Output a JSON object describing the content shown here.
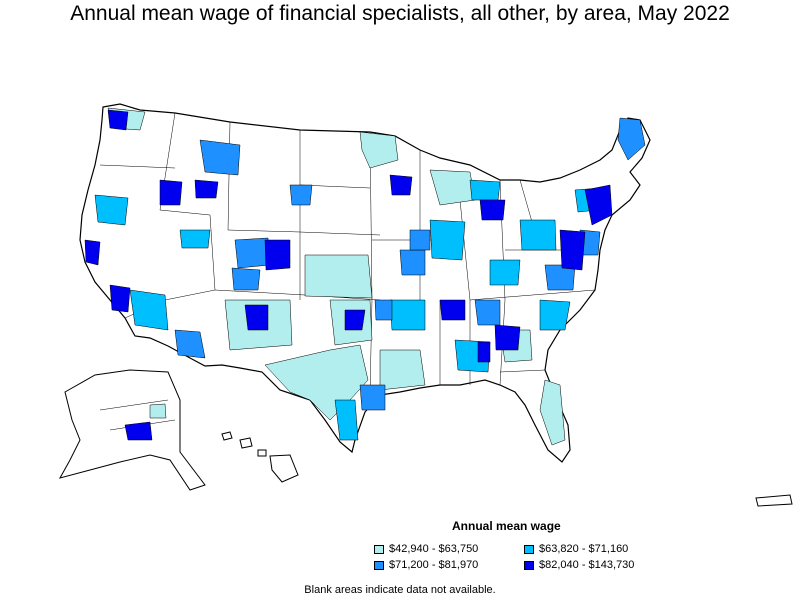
{
  "title": "Annual mean wage of financial specialists, all other, by area, May 2022",
  "legend": {
    "title": "Annual mean wage",
    "items": [
      {
        "label": "$42,940 - $63,750",
        "color": "#b2eeee"
      },
      {
        "label": "$63,820 - $71,160",
        "color": "#00bfff"
      },
      {
        "label": "$71,200 - $81,970",
        "color": "#1e90ff"
      },
      {
        "label": "$82,040 - $143,730",
        "color": "#0000ee"
      }
    ]
  },
  "note": "Blank areas indicate data not available."
}
